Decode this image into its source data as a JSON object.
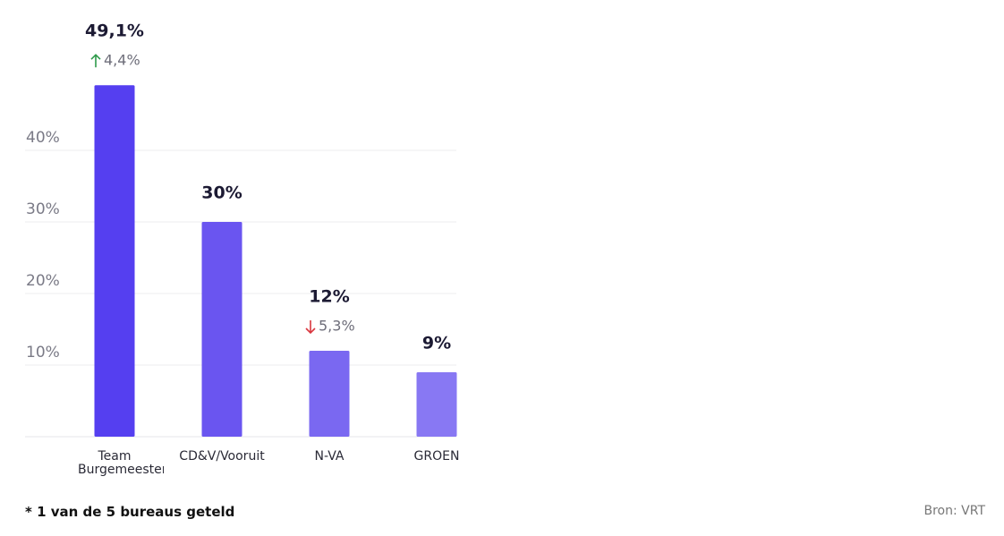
{
  "chart_data": {
    "type": "bar",
    "categories": [
      "Team Burgemeester",
      "CD&V/Vooruit",
      "N-VA",
      "GROEN"
    ],
    "values": [
      49.1,
      30,
      12,
      9
    ],
    "value_labels": [
      "49,1%",
      "30%",
      "12%",
      "9%"
    ],
    "changes": [
      {
        "value": 4.4,
        "label": "4,4%",
        "direction": "up"
      },
      null,
      {
        "value": -5.3,
        "label": "5,3%",
        "direction": "down"
      },
      null
    ],
    "colors": [
      "#553ff0",
      "#6a55f0",
      "#7a68f1",
      "#8878f3"
    ],
    "ylim": [
      0,
      50
    ],
    "yticks": [
      {
        "value": 10,
        "label": "10%"
      },
      {
        "value": 20,
        "label": "20%"
      },
      {
        "value": 30,
        "label": "30%"
      },
      {
        "value": 40,
        "label": "40%"
      }
    ],
    "grid": true,
    "footnote": "* 1 van de 5 bureaus geteld",
    "source": "Bron: VRT"
  }
}
